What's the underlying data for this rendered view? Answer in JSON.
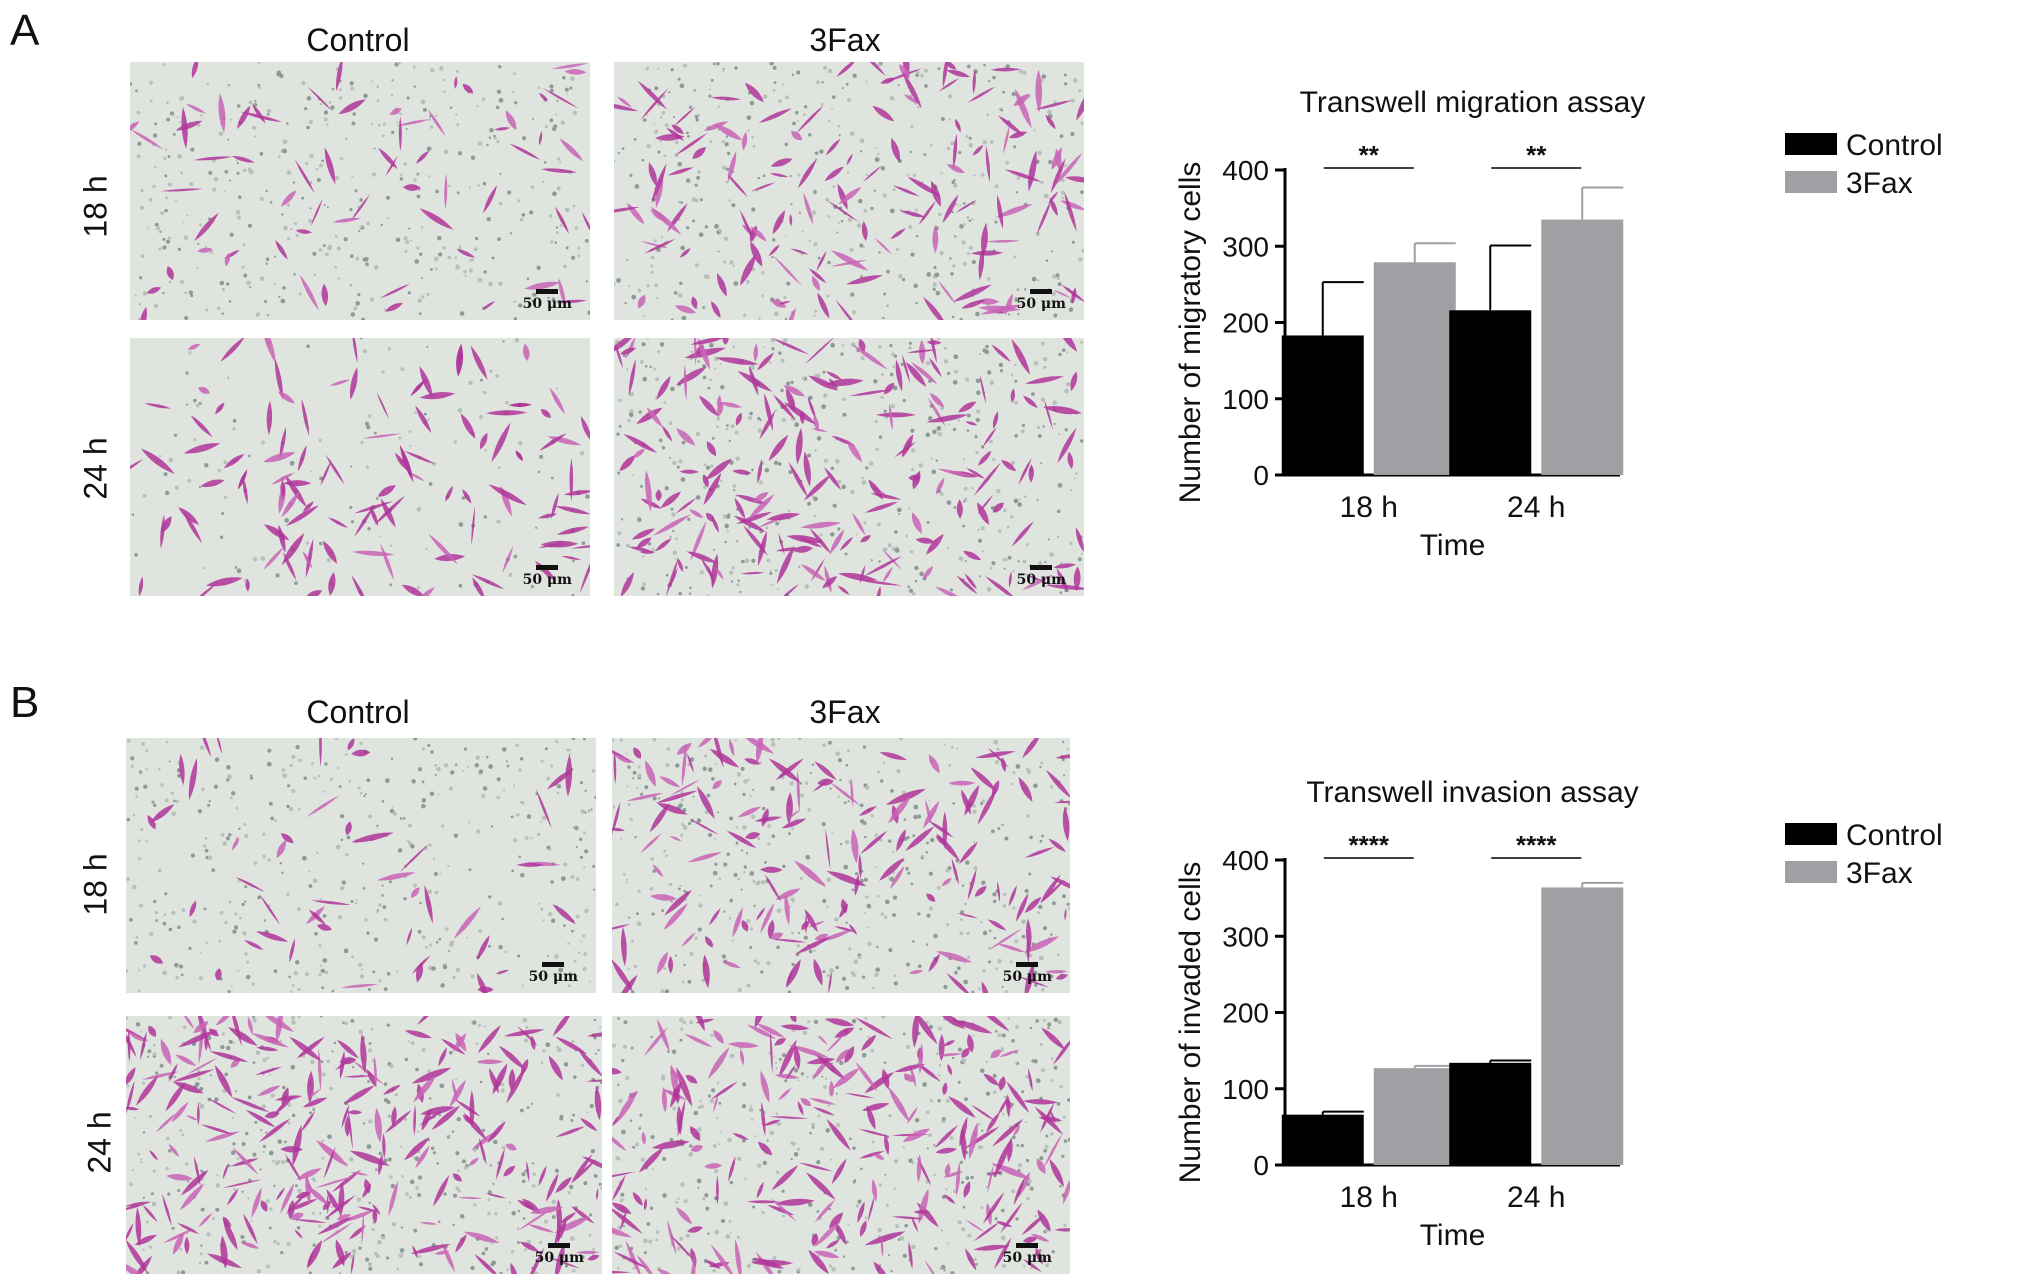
{
  "panels": [
    {
      "letter": "A",
      "col_titles": [
        "Control",
        "3Fax"
      ],
      "row_labels": [
        "18 h",
        "24 h"
      ],
      "scale_label": "50 μm",
      "micrographs": [
        {
          "condition": "Control",
          "time": "18 h",
          "density": 0.25
        },
        {
          "condition": "3Fax",
          "time": "18 h",
          "density": 0.55
        },
        {
          "condition": "Control",
          "time": "24 h",
          "density": 0.45
        },
        {
          "condition": "3Fax",
          "time": "24 h",
          "density": 0.75
        }
      ]
    },
    {
      "letter": "B",
      "col_titles": [
        "Control",
        "3Fax"
      ],
      "row_labels": [
        "18 h",
        "24 h"
      ],
      "scale_label": "50 μm",
      "micrographs": [
        {
          "condition": "Control",
          "time": "18 h",
          "density": 0.18
        },
        {
          "condition": "3Fax",
          "time": "18 h",
          "density": 0.6
        },
        {
          "condition": "Control",
          "time": "24 h",
          "density": 0.95
        },
        {
          "condition": "3Fax",
          "time": "24 h",
          "density": 0.85
        }
      ]
    }
  ],
  "chart_data": [
    {
      "type": "bar",
      "title": "Transwell migration assay",
      "xlabel": "Time",
      "ylabel": "Number of migratory cells",
      "categories": [
        "18 h",
        "24 h"
      ],
      "ylim": [
        0,
        400
      ],
      "yticks": [
        0,
        100,
        200,
        300,
        400
      ],
      "series": [
        {
          "name": "Control",
          "color": "#000000",
          "values": [
            183,
            216
          ],
          "errors": [
            70,
            85
          ]
        },
        {
          "name": "3Fax",
          "color": "#a0a0a4",
          "values": [
            279,
            335
          ],
          "errors": [
            25,
            42
          ]
        }
      ],
      "significance": [
        "**",
        "**"
      ],
      "legend": "top-right"
    },
    {
      "type": "bar",
      "title": "Transwell invasion assay",
      "xlabel": "Time",
      "ylabel": "Number of invaded cells",
      "categories": [
        "18 h",
        "24 h"
      ],
      "ylim": [
        0,
        400
      ],
      "yticks": [
        0,
        100,
        200,
        300,
        400
      ],
      "series": [
        {
          "name": "Control",
          "color": "#000000",
          "values": [
            66,
            134
          ],
          "errors": [
            4,
            3
          ]
        },
        {
          "name": "3Fax",
          "color": "#a0a0a4",
          "values": [
            127,
            364
          ],
          "errors": [
            3,
            6
          ]
        }
      ],
      "significance": [
        "****",
        "****"
      ],
      "legend": "top-right"
    }
  ]
}
